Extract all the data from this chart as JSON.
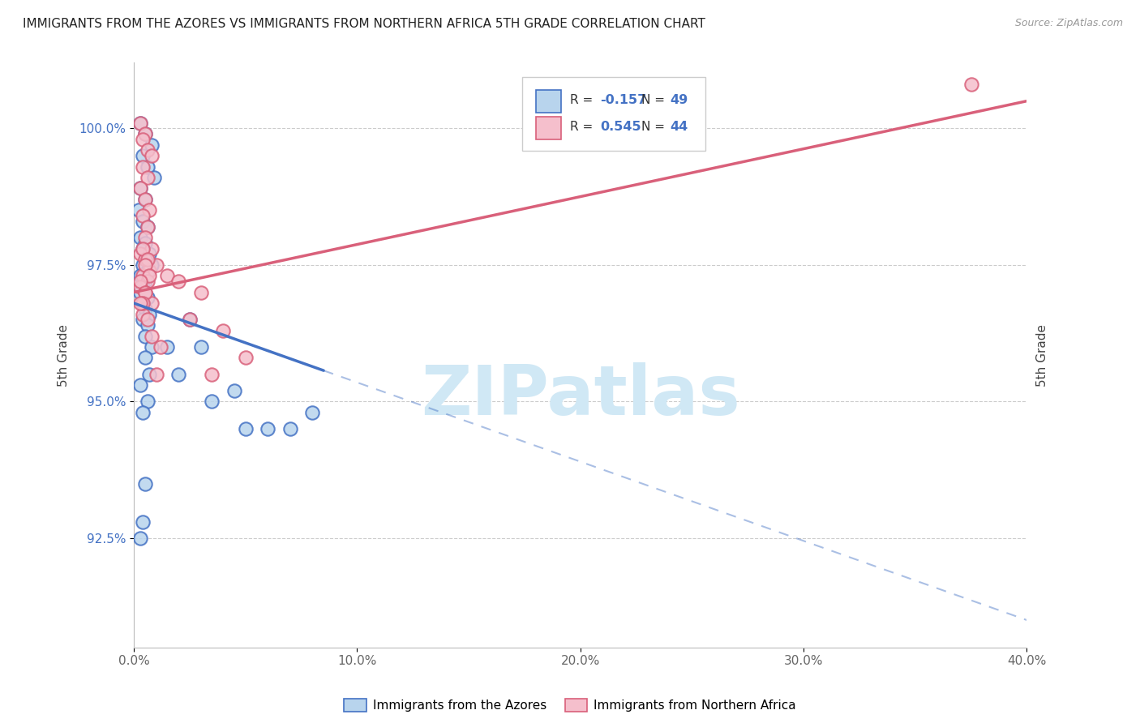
{
  "title": "IMMIGRANTS FROM THE AZORES VS IMMIGRANTS FROM NORTHERN AFRICA 5TH GRADE CORRELATION CHART",
  "source": "Source: ZipAtlas.com",
  "ylabel": "5th Grade",
  "x_tick_labels": [
    "0.0%",
    "10.0%",
    "20.0%",
    "30.0%",
    "40.0%"
  ],
  "x_tick_values": [
    0.0,
    10.0,
    20.0,
    30.0,
    40.0
  ],
  "y_tick_labels": [
    "92.5%",
    "95.0%",
    "97.5%",
    "100.0%"
  ],
  "y_tick_values": [
    92.5,
    95.0,
    97.5,
    100.0
  ],
  "xlim": [
    0.0,
    40.0
  ],
  "ylim": [
    90.5,
    101.2
  ],
  "color_blue_fill": "#b8d4ed",
  "color_pink_fill": "#f5bfcc",
  "color_blue_edge": "#4472c4",
  "color_pink_edge": "#d9607a",
  "color_blue_line": "#4472c4",
  "color_pink_line": "#d9607a",
  "color_blue_text": "#4472c4",
  "watermark": "ZIPatlas",
  "watermark_color": "#d0e8f5",
  "legend_label1": "Immigrants from the Azores",
  "legend_label2": "Immigrants from Northern Africa",
  "r_blue": -0.157,
  "n_blue": 49,
  "r_pink": 0.545,
  "n_pink": 44,
  "blue_x": [
    0.3,
    0.5,
    0.8,
    0.4,
    0.6,
    0.9,
    0.3,
    0.5,
    0.2,
    0.4,
    0.6,
    0.3,
    0.5,
    0.4,
    0.7,
    0.5,
    0.8,
    0.4,
    0.6,
    0.3,
    0.5,
    0.4,
    0.3,
    0.6,
    0.4,
    0.5,
    0.7,
    0.4,
    0.6,
    0.5,
    0.8,
    0.5,
    0.7,
    0.3,
    0.6,
    0.4,
    2.5,
    3.0,
    3.5,
    4.5,
    5.0,
    6.0,
    7.0,
    8.0,
    0.5,
    0.4,
    0.3,
    1.5,
    2.0
  ],
  "blue_y": [
    100.1,
    99.9,
    99.7,
    99.5,
    99.3,
    99.1,
    98.9,
    98.7,
    98.5,
    98.3,
    98.2,
    98.0,
    97.9,
    97.8,
    97.7,
    97.6,
    97.5,
    97.5,
    97.4,
    97.3,
    97.2,
    97.1,
    97.0,
    96.9,
    96.8,
    96.7,
    96.6,
    96.5,
    96.4,
    96.2,
    96.0,
    95.8,
    95.5,
    95.3,
    95.0,
    94.8,
    96.5,
    96.0,
    95.0,
    95.2,
    94.5,
    94.5,
    94.5,
    94.8,
    93.5,
    92.8,
    92.5,
    96.0,
    95.5
  ],
  "pink_x": [
    0.3,
    0.5,
    0.4,
    0.6,
    0.8,
    0.4,
    0.6,
    0.3,
    0.5,
    0.7,
    0.4,
    0.6,
    0.5,
    0.8,
    0.3,
    0.5,
    0.7,
    0.4,
    0.6,
    0.3,
    0.5,
    0.8,
    0.4,
    1.0,
    1.5,
    2.0,
    2.5,
    3.0,
    3.5,
    4.0,
    5.0,
    0.4,
    0.6,
    0.5,
    0.7,
    0.3,
    0.5,
    0.4,
    0.6,
    0.8,
    1.0,
    1.2,
    37.5,
    0.3
  ],
  "pink_y": [
    100.1,
    99.9,
    99.8,
    99.6,
    99.5,
    99.3,
    99.1,
    98.9,
    98.7,
    98.5,
    98.4,
    98.2,
    98.0,
    97.8,
    97.7,
    97.6,
    97.4,
    97.3,
    97.2,
    97.1,
    97.0,
    96.8,
    96.6,
    97.5,
    97.3,
    97.2,
    96.5,
    97.0,
    95.5,
    96.3,
    95.8,
    97.8,
    97.6,
    97.5,
    97.3,
    97.2,
    97.0,
    96.8,
    96.5,
    96.2,
    95.5,
    96.0,
    100.8,
    96.8
  ]
}
